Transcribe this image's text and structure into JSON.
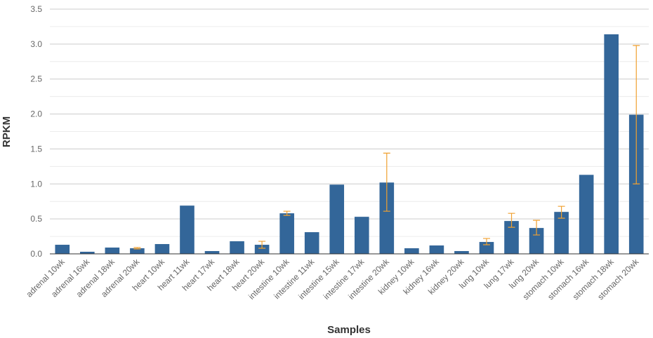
{
  "chart_data": {
    "type": "bar",
    "xlabel": "Samples",
    "ylabel": "RPKM",
    "ylim": [
      0,
      3.5
    ],
    "yticks": [
      "0.0",
      "0.5",
      "1.0",
      "1.5",
      "2.0",
      "2.5",
      "3.0",
      "3.5"
    ],
    "grid": true,
    "bar_color": "#336699",
    "error_color": "#f0a030",
    "categories": [
      "adrenal 10wk",
      "adrenal 16wk",
      "adrenal 18wk",
      "adrenal 20wk",
      "heart 10wk",
      "heart 11wk",
      "heart 17wk",
      "heart 18wk",
      "heart 20wk",
      "intestine 10wk",
      "intestine 11wk",
      "intestine 15wk",
      "intestine 17wk",
      "intestine 20wk",
      "kidney 10wk",
      "kidney 16wk",
      "kidney 20wk",
      "lung 10wk",
      "lung 17wk",
      "lung 20wk",
      "stomach 10wk",
      "stomach 16wk",
      "stomach 18wk",
      "stomach 20wk"
    ],
    "values": [
      0.13,
      0.03,
      0.09,
      0.08,
      0.14,
      0.69,
      0.04,
      0.18,
      0.13,
      0.58,
      0.31,
      0.99,
      0.53,
      1.02,
      0.08,
      0.12,
      0.04,
      0.17,
      0.47,
      0.37,
      0.6,
      1.13,
      3.14,
      1.99
    ],
    "error_low": [
      null,
      null,
      null,
      0.07,
      null,
      null,
      null,
      null,
      0.08,
      0.55,
      null,
      null,
      null,
      0.61,
      null,
      null,
      null,
      0.13,
      0.38,
      0.27,
      0.51,
      null,
      null,
      1.0
    ],
    "error_high": [
      null,
      null,
      null,
      0.09,
      null,
      null,
      null,
      null,
      0.18,
      0.61,
      null,
      null,
      null,
      1.44,
      null,
      null,
      null,
      0.22,
      0.58,
      0.48,
      0.68,
      null,
      null,
      2.98
    ]
  }
}
